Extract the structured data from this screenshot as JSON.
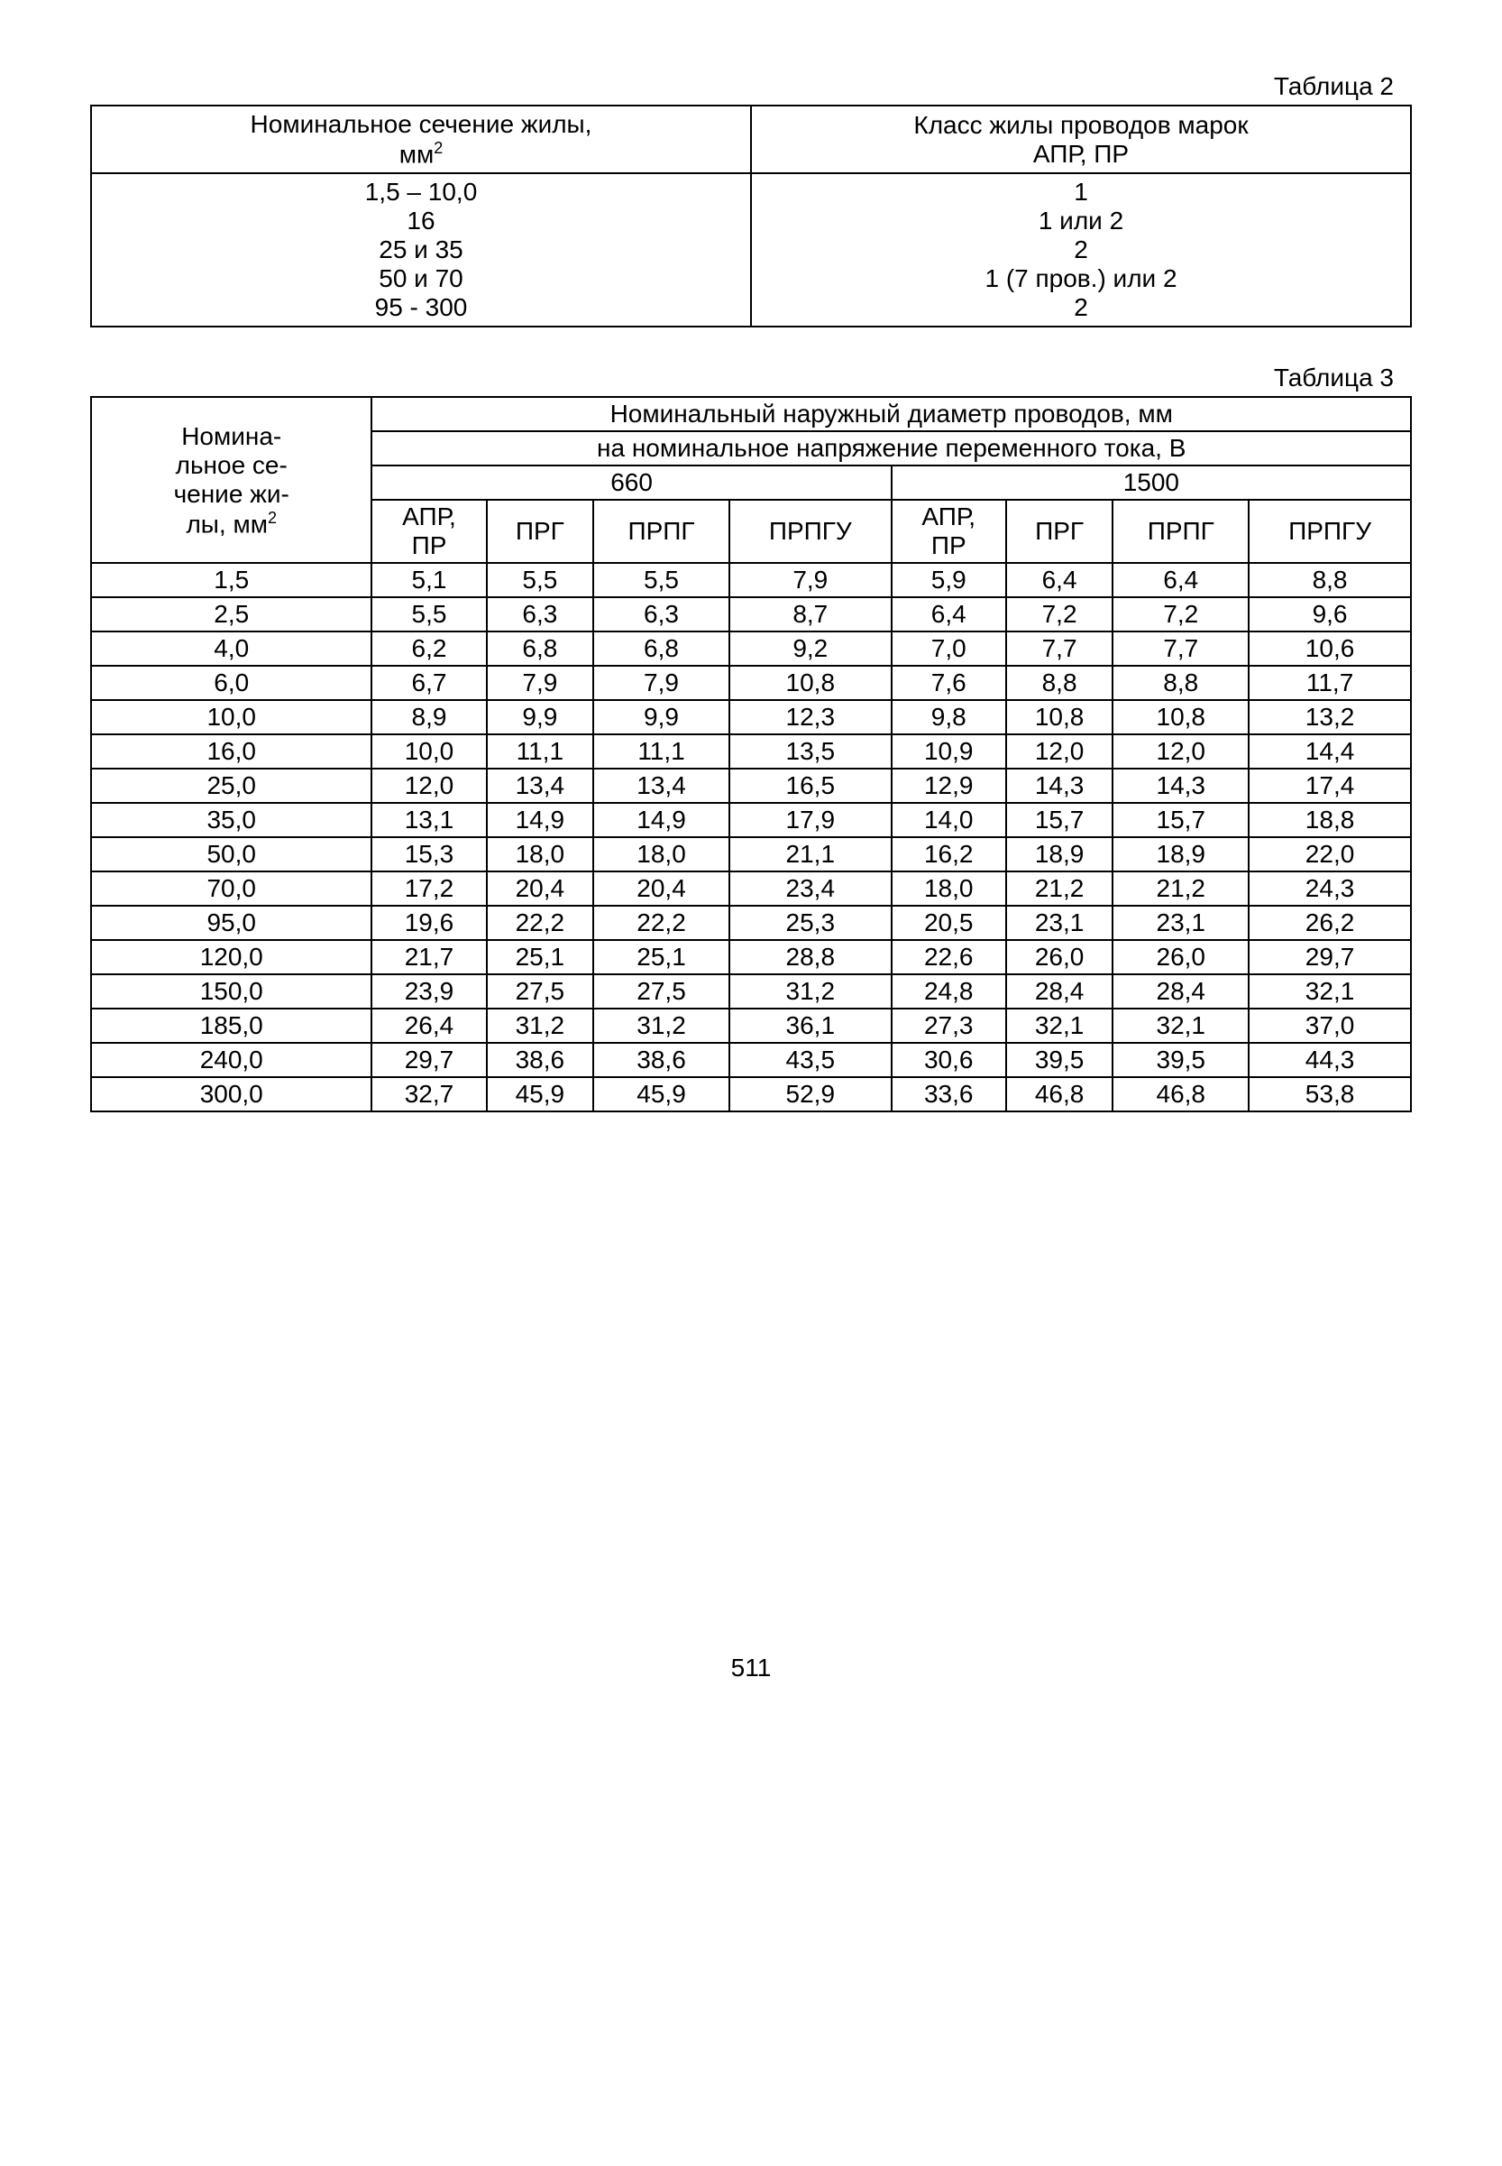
{
  "table2": {
    "label": "Таблица 2",
    "header_col1_line1": "Номинальное сечение жилы,",
    "header_col1_line2": "мм",
    "header_col1_sup": "2",
    "header_col2_line1": "Класс жилы проводов марок",
    "header_col2_line2": "АПР, ПР",
    "rows": [
      {
        "c1": "1,5 – 10,0",
        "c2": "1"
      },
      {
        "c1": "16",
        "c2": "1 или 2"
      },
      {
        "c1": "25 и 35",
        "c2": "2"
      },
      {
        "c1": "50 и 70",
        "c2": "1 (7 пров.) или 2"
      },
      {
        "c1": "95 - 300",
        "c2": "2"
      }
    ]
  },
  "table3": {
    "label": "Таблица 3",
    "rowhead_l1": "Номина-",
    "rowhead_l2": "льное се-",
    "rowhead_l3": "чение жи-",
    "rowhead_l4": "лы, мм",
    "rowhead_sup": "2",
    "top_header": "Номинальный наружный диаметр проводов, мм",
    "sub_header": "на номинальное напряжение переменного тока, В",
    "voltage1": "660",
    "voltage2": "1500",
    "col_labels": [
      "АПР, ПР",
      "ПРГ",
      "ПРПГ",
      "ПРПГУ",
      "АПР, ПР",
      "ПРГ",
      "ПРПГ",
      "ПРПГУ"
    ],
    "rows": [
      {
        "s": "1,5",
        "v": [
          "5,1",
          "5,5",
          "5,5",
          "7,9",
          "5,9",
          "6,4",
          "6,4",
          "8,8"
        ]
      },
      {
        "s": "2,5",
        "v": [
          "5,5",
          "6,3",
          "6,3",
          "8,7",
          "6,4",
          "7,2",
          "7,2",
          "9,6"
        ]
      },
      {
        "s": "4,0",
        "v": [
          "6,2",
          "6,8",
          "6,8",
          "9,2",
          "7,0",
          "7,7",
          "7,7",
          "10,6"
        ]
      },
      {
        "s": "6,0",
        "v": [
          "6,7",
          "7,9",
          "7,9",
          "10,8",
          "7,6",
          "8,8",
          "8,8",
          "11,7"
        ]
      },
      {
        "s": "10,0",
        "v": [
          "8,9",
          "9,9",
          "9,9",
          "12,3",
          "9,8",
          "10,8",
          "10,8",
          "13,2"
        ]
      },
      {
        "s": "16,0",
        "v": [
          "10,0",
          "11,1",
          "11,1",
          "13,5",
          "10,9",
          "12,0",
          "12,0",
          "14,4"
        ]
      },
      {
        "s": "25,0",
        "v": [
          "12,0",
          "13,4",
          "13,4",
          "16,5",
          "12,9",
          "14,3",
          "14,3",
          "17,4"
        ]
      },
      {
        "s": "35,0",
        "v": [
          "13,1",
          "14,9",
          "14,9",
          "17,9",
          "14,0",
          "15,7",
          "15,7",
          "18,8"
        ]
      },
      {
        "s": "50,0",
        "v": [
          "15,3",
          "18,0",
          "18,0",
          "21,1",
          "16,2",
          "18,9",
          "18,9",
          "22,0"
        ]
      },
      {
        "s": "70,0",
        "v": [
          "17,2",
          "20,4",
          "20,4",
          "23,4",
          "18,0",
          "21,2",
          "21,2",
          "24,3"
        ]
      },
      {
        "s": "95,0",
        "v": [
          "19,6",
          "22,2",
          "22,2",
          "25,3",
          "20,5",
          "23,1",
          "23,1",
          "26,2"
        ]
      },
      {
        "s": "120,0",
        "v": [
          "21,7",
          "25,1",
          "25,1",
          "28,8",
          "22,6",
          "26,0",
          "26,0",
          "29,7"
        ]
      },
      {
        "s": "150,0",
        "v": [
          "23,9",
          "27,5",
          "27,5",
          "31,2",
          "24,8",
          "28,4",
          "28,4",
          "32,1"
        ]
      },
      {
        "s": "185,0",
        "v": [
          "26,4",
          "31,2",
          "31,2",
          "36,1",
          "27,3",
          "32,1",
          "32,1",
          "37,0"
        ]
      },
      {
        "s": "240,0",
        "v": [
          "29,7",
          "38,6",
          "38,6",
          "43,5",
          "30,6",
          "39,5",
          "39,5",
          "44,3"
        ]
      },
      {
        "s": "300,0",
        "v": [
          "32,7",
          "45,9",
          "45,9",
          "52,9",
          "33,6",
          "46,8",
          "46,8",
          "53,8"
        ]
      }
    ]
  },
  "page_number": "511"
}
